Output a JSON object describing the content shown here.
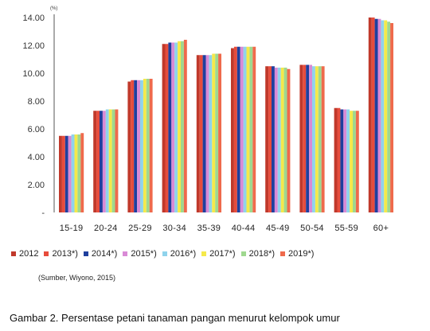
{
  "chart_data": {
    "type": "bar",
    "unit_label": "(%)",
    "ylim": [
      0,
      14
    ],
    "yticks": [
      "-",
      "2.00",
      "4.00",
      "6.00",
      "8.00",
      "10.00",
      "12.00",
      "14.00"
    ],
    "categories": [
      "15-19",
      "20-24",
      "25-29",
      "30-34",
      "35-39",
      "40-44",
      "45-49",
      "50-54",
      "55-59",
      "60+"
    ],
    "grid": false,
    "legend_position": "bottom",
    "series": [
      {
        "name": "2012",
        "color": "#c0392b",
        "values": [
          5.5,
          7.3,
          9.4,
          12.1,
          11.3,
          11.8,
          10.5,
          10.6,
          7.5,
          14.0
        ]
      },
      {
        "name": "2013*)",
        "color": "#e74c3c",
        "values": [
          5.5,
          7.3,
          9.5,
          12.1,
          11.3,
          11.9,
          10.5,
          10.6,
          7.5,
          14.0
        ]
      },
      {
        "name": "2014*)",
        "color": "#1f3f9e",
        "values": [
          5.5,
          7.3,
          9.5,
          12.2,
          11.3,
          11.9,
          10.5,
          10.6,
          7.4,
          13.9
        ]
      },
      {
        "name": "2015*)",
        "color": "#d98ad6",
        "values": [
          5.5,
          7.3,
          9.5,
          12.2,
          11.3,
          11.9,
          10.4,
          10.6,
          7.4,
          13.9
        ]
      },
      {
        "name": "2016*)",
        "color": "#8fd3ec",
        "values": [
          5.6,
          7.4,
          9.5,
          12.2,
          11.3,
          11.9,
          10.4,
          10.5,
          7.4,
          13.8
        ]
      },
      {
        "name": "2017*)",
        "color": "#f5e94a",
        "values": [
          5.6,
          7.4,
          9.6,
          12.3,
          11.4,
          11.9,
          10.4,
          10.5,
          7.3,
          13.8
        ]
      },
      {
        "name": "2018*)",
        "color": "#9fd88f",
        "values": [
          5.6,
          7.4,
          9.6,
          12.3,
          11.4,
          11.9,
          10.4,
          10.5,
          7.3,
          13.7
        ]
      },
      {
        "name": "2019*)",
        "color": "#ef6a4c",
        "values": [
          5.7,
          7.4,
          9.6,
          12.4,
          11.4,
          11.9,
          10.3,
          10.5,
          7.3,
          13.6
        ]
      }
    ]
  },
  "legend": {
    "items": [
      "2012",
      "2013*)",
      "2014*)",
      "2015*)",
      "2016*)",
      "2017*)",
      "2018*)",
      "2019*)"
    ]
  },
  "source_text": "(Sumber, Wiyono, 2015)",
  "caption": "Gambar 2. Persentase petani tanaman pangan menurut kelompok umur"
}
